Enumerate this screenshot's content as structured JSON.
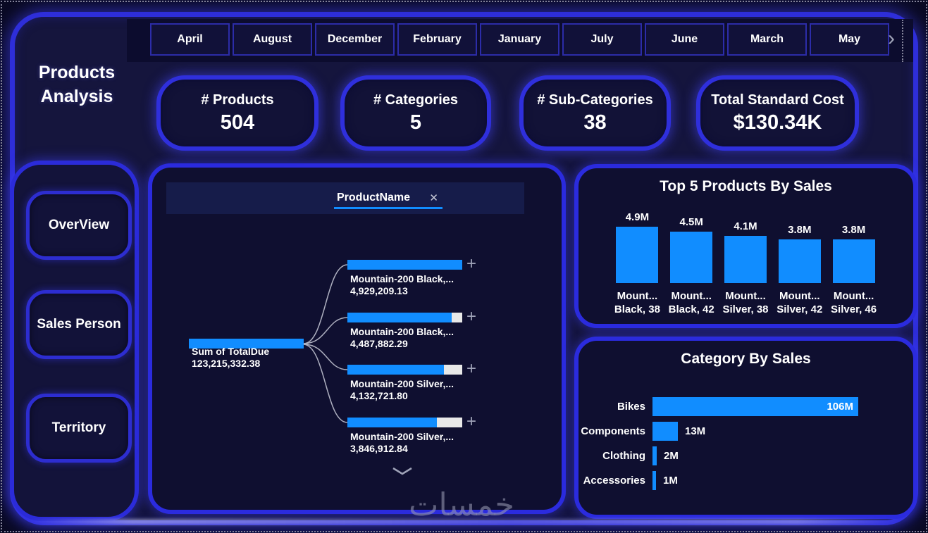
{
  "title": "Products Analysis",
  "watermark": "خمسات",
  "icons": {
    "close": "✕",
    "plus": "+",
    "next": "›"
  },
  "month_slicer": {
    "months": [
      "April",
      "August",
      "December",
      "February",
      "January",
      "July",
      "June",
      "March",
      "May"
    ]
  },
  "kpi_cards": [
    {
      "label": "# Products",
      "value": "504"
    },
    {
      "label": "# Categories",
      "value": "5"
    },
    {
      "label": "# Sub-Categories",
      "value": "38"
    },
    {
      "label": "Total Standard Cost",
      "value": "$130.34K"
    }
  ],
  "nav_buttons": [
    {
      "label": "OverView"
    },
    {
      "label": "Sales Person"
    },
    {
      "label": "Territory"
    }
  ],
  "decomposition_tree": {
    "field": "ProductName",
    "root": {
      "label": "Sum of TotalDue",
      "value": "123,215,332.38"
    },
    "children": [
      {
        "label": "Mountain-200 Black,...",
        "value": "4,929,209.13"
      },
      {
        "label": "Mountain-200 Black,...",
        "value": "4,487,882.29"
      },
      {
        "label": "Mountain-200 Silver,...",
        "value": "4,132,721.80"
      },
      {
        "label": "Mountain-200 Silver,...",
        "value": "3,846,912.84"
      }
    ]
  },
  "chart_data": [
    {
      "type": "bar",
      "title": "Top 5 Products By Sales",
      "categories": [
        [
          "Mount...",
          "Black, 38"
        ],
        [
          "Mount...",
          "Black, 42"
        ],
        [
          "Mount...",
          "Silver, 38"
        ],
        [
          "Mount...",
          "Silver, 42"
        ],
        [
          "Mount...",
          "Silver, 46"
        ]
      ],
      "values": [
        4.9,
        4.5,
        4.1,
        3.8,
        3.8
      ],
      "value_labels": [
        "4.9M",
        "4.5M",
        "4.1M",
        "3.8M",
        "3.8M"
      ],
      "unit": "M",
      "ylim": [
        0,
        4.9
      ],
      "grid": false,
      "legend": "none",
      "bar_color": "#118DFF"
    },
    {
      "type": "bar",
      "orientation": "horizontal",
      "title": "Category By Sales",
      "categories": [
        "Bikes",
        "Components",
        "Clothing",
        "Accessories"
      ],
      "values": [
        106,
        13,
        2,
        1
      ],
      "value_labels": [
        "106M",
        "13M",
        "2M",
        "1M"
      ],
      "unit": "M",
      "xlim": [
        0,
        106
      ],
      "grid": false,
      "legend": "none",
      "bar_color": "#118DFF"
    }
  ],
  "colors": {
    "accent_bar": "#118DFF",
    "neon_border": "#2E2ED9",
    "background": "#0A0A24",
    "frame_fill": "#15153D",
    "panel_fill": "#0F0F30",
    "bar_remainder": "#E8E8E8",
    "text": "#FFFFFF"
  }
}
